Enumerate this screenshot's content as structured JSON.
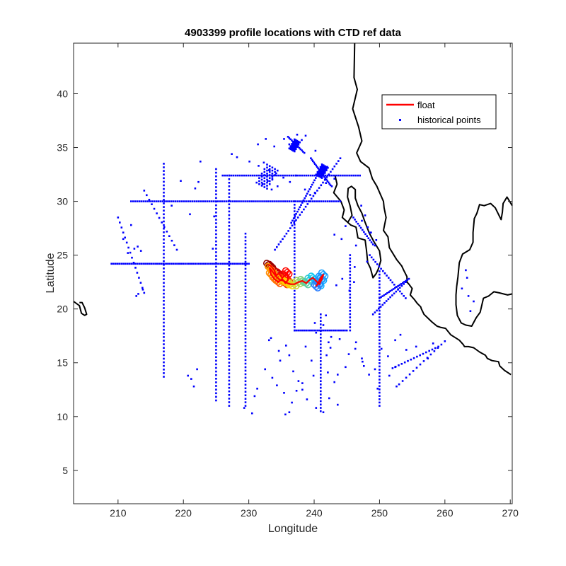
{
  "chart_data": {
    "type": "scatter",
    "title": "4903399 profile locations with CTD ref data",
    "xlabel": "Longitude",
    "ylabel": "Latitude",
    "xlim": [
      203.2,
      270.3
    ],
    "ylim": [
      1.9,
      44.7
    ],
    "xticks": [
      210,
      220,
      230,
      240,
      250,
      260,
      270
    ],
    "yticks": [
      5,
      10,
      15,
      20,
      25,
      30,
      35,
      40
    ],
    "grid": false,
    "legend_position": "top-right",
    "colors": {
      "float": "#ff0000",
      "historical": "#0000ff",
      "coast": "#000000",
      "trajectory_gradient": [
        "#8b0000",
        "#ff0000",
        "#ff8c00",
        "#ffd700",
        "#00c8ff",
        "#2a7fff"
      ]
    },
    "series": [
      {
        "name": "float",
        "style": "line",
        "color": "#ff0000",
        "x": [
          233.0,
          233.4,
          233.9,
          234.2,
          234.6,
          235.1,
          235.5,
          235.9,
          236.0,
          235.6,
          235.1,
          234.5,
          233.9,
          233.4,
          233.2,
          233.6,
          234.2,
          234.8,
          235.4,
          235.9,
          236.4,
          237.0,
          237.6,
          238.2,
          238.8,
          239.3,
          239.8,
          240.3,
          240.8,
          241.2,
          241.4,
          241.0,
          240.6,
          240.3
        ],
        "y": [
          24.1,
          24.0,
          23.6,
          23.1,
          23.3,
          22.9,
          23.1,
          23.4,
          22.7,
          22.4,
          22.8,
          22.5,
          22.8,
          23.2,
          23.8,
          23.5,
          23.0,
          22.7,
          22.6,
          22.4,
          22.3,
          22.3,
          22.5,
          22.6,
          22.4,
          22.7,
          22.9,
          22.6,
          22.3,
          22.8,
          23.2,
          22.9,
          22.4,
          22.1
        ]
      },
      {
        "name": "historical points",
        "style": "dots",
        "color": "#0000ff",
        "groups": [
          {
            "label": "",
            "x": [
              212,
              244
            ],
            "y": [
              30,
              30
            ],
            "n": 100
          },
          {
            "label": "",
            "x": [
              226,
              247
            ],
            "y": [
              32.4,
              32.4
            ],
            "n": 65
          },
          {
            "label": "",
            "x": [
              209,
              230
            ],
            "y": [
              24.2,
              24.2
            ],
            "n": 70
          },
          {
            "label": "",
            "x": [
              217,
              217
            ],
            "y": [
              33.5,
              13.7
            ],
            "n": 60
          },
          {
            "label": "",
            "x": [
              225,
              225
            ],
            "y": [
              33.0,
              11.5
            ],
            "n": 65
          },
          {
            "label": "",
            "x": [
              227,
              227
            ],
            "y": [
              32.4,
              11.0
            ],
            "n": 65
          },
          {
            "label": "",
            "x": [
              229.5,
              229.5
            ],
            "y": [
              27.0,
              11.0
            ],
            "n": 50
          },
          {
            "label": "",
            "x": [
              237,
              237
            ],
            "y": [
              30,
              18
            ],
            "n": 40
          },
          {
            "label": "",
            "x": [
              237,
              245
            ],
            "y": [
              18,
              18
            ],
            "n": 28
          },
          {
            "label": "",
            "x": [
              245.5,
              245.5
            ],
            "y": [
              25.0,
              18.0
            ],
            "n": 24
          },
          {
            "label": "",
            "x": [
              250,
              250
            ],
            "y": [
              23.5,
              11.0
            ],
            "n": 42
          },
          {
            "label": "",
            "x": [
              241,
              241
            ],
            "y": [
              19.5,
              10.5
            ],
            "n": 30
          },
          {
            "label": "",
            "x": [
              234,
              244
            ],
            "y": [
              25.5,
              34.0
            ],
            "n": 35
          },
          {
            "label": "",
            "x": [
              250,
              254.5
            ],
            "y": [
              21,
              22.8
            ],
            "n": 20
          },
          {
            "label": "",
            "x": [
              249,
              254
            ],
            "y": [
              19.5,
              22.5
            ],
            "n": 18
          },
          {
            "label": "",
            "x": [
              248.5,
              254.0
            ],
            "y": [
              25.0,
              21.0
            ],
            "n": 20
          },
          {
            "label": "",
            "x": [
              236.5,
              241.0
            ],
            "y": [
              28.0,
              33.0
            ],
            "n": 25
          },
          {
            "label": "",
            "x": [
              210.0,
              214.0
            ],
            "y": [
              28.5,
              21.5
            ],
            "n": 16
          },
          {
            "label": "",
            "x": [
              214.0,
              219.0
            ],
            "y": [
              31.0,
              25.5
            ],
            "n": 14
          },
          {
            "label": "",
            "x": [
              239.5,
              242.5
            ],
            "y": [
              34.0,
              31.5
            ],
            "n": 20
          },
          {
            "label": "",
            "x": [
              236.0,
              238.5
            ],
            "y": [
              36.0,
              34.5
            ],
            "n": 14
          },
          {
            "label": "",
            "x": [
              246.0,
              249.0
            ],
            "y": [
              28.5,
              26.0
            ],
            "n": 14
          },
          {
            "label": "",
            "x": [
              252.0,
              259.0
            ],
            "y": [
              14.5,
              16.5
            ],
            "n": 16
          },
          {
            "label": "",
            "x": [
              253.0,
              260.0
            ],
            "y": [
              13.0,
              17.0
            ],
            "n": 14
          }
        ],
        "x": [
          213,
          213.5,
          212.5,
          211.5,
          213.8,
          213.1,
          212.8,
          210.8,
          212,
          224.5,
          224.7,
          221.8,
          222.3,
          221,
          218.2,
          219.6,
          222.6,
          227.4,
          228.2,
          230.1,
          231.4,
          232.6,
          233.9,
          235.4,
          236.2,
          237.4,
          238.1,
          238.7,
          240.2,
          241.1,
          231.5,
          232.3,
          233.1,
          233.6,
          232.1,
          232.9,
          233.5,
          234.4,
          234.2,
          235.3,
          233.2,
          242,
          241.4,
          242.4,
          243.1,
          241.8,
          242.7,
          238.6,
          239.4,
          240.1,
          236.3,
          237.2,
          247.3,
          248.2,
          248.7,
          249.5,
          246.4,
          244.2,
          243.1,
          244.8,
          235.4,
          234.3,
          233.6,
          232.5,
          234.8,
          236.2,
          235.7,
          233.4,
          233.1,
          234.6,
          236.8,
          237.6,
          238.2,
          238.9,
          240.3,
          241.4,
          242.3,
          243.6,
          243.1,
          242.1,
          241.9,
          242.5,
          243.9,
          251.3,
          252.4,
          251.5,
          252.6,
          249.7,
          248.4,
          247.6,
          247.3,
          246.3,
          240.1,
          241.8,
          241.4,
          240.3,
          242.6,
          242.2,
          238.7,
          239.6,
          239.9,
          238.2,
          237.3,
          236.6,
          236.2,
          235.6,
          230.9,
          231.3,
          229.3,
          230.5,
          221.6,
          221.2,
          220.7,
          222.1,
          243.6,
          244.8,
          245.3,
          246.4,
          247.4,
          249.3,
          250.3,
          252.4,
          253.2,
          254.1,
          255.6,
          257.4,
          258.2,
          263.2,
          263.4,
          262.6,
          263.6,
          264.4,
          263.9,
          247.2,
          247.8,
          248.5,
          249.3,
          248.1,
          246.2,
          246.1,
          245.4,
          244.3,
          243.4
        ],
        "y": [
          25.8,
          25.4,
          25.6,
          25.2,
          21.8,
          21.4,
          21.2,
          26.5,
          27.8,
          25.6,
          28.6,
          31.2,
          31.8,
          28.8,
          29.6,
          31.9,
          33.7,
          34.4,
          34.1,
          33.7,
          35.3,
          35.8,
          35.1,
          35.8,
          35.3,
          36.2,
          35.7,
          36.1,
          34.7,
          33.1,
          33.3,
          33.6,
          32.9,
          32.1,
          31.6,
          31.9,
          31.1,
          31.4,
          32.6,
          32.2,
          32.9,
          33.2,
          32.8,
          32.4,
          32.1,
          31.7,
          31.4,
          31.1,
          30.6,
          30.8,
          31.8,
          32.4,
          28.2,
          27.6,
          27.1,
          26.4,
          25.9,
          26.5,
          26.9,
          27.7,
          12.2,
          12.9,
          13.6,
          14.4,
          15.2,
          15.7,
          16.6,
          17.3,
          17.1,
          16.1,
          14.2,
          13.3,
          12.5,
          11.6,
          10.8,
          10.4,
          11.7,
          11.1,
          13.2,
          14.1,
          15.7,
          16.4,
          17.2,
          15.6,
          14.6,
          13.8,
          12.8,
          12.6,
          13.9,
          14.7,
          15.4,
          16.3,
          18.7,
          19.4,
          18.5,
          17.8,
          17.4,
          16.9,
          16.5,
          15.2,
          13.8,
          13.1,
          12.4,
          11.3,
          10.4,
          10.2,
          11.9,
          12.6,
          10.8,
          10.3,
          12.8,
          13.5,
          13.8,
          14.4,
          13.9,
          14.6,
          15.8,
          16.9,
          15.1,
          14.4,
          16.3,
          17.1,
          17.6,
          16.2,
          16.5,
          15.4,
          16.8,
          23.6,
          22.9,
          21.9,
          21.2,
          20.7,
          19.8,
          29.6,
          28.7,
          27.1,
          25.9,
          24.4,
          23.9,
          22.5,
          21.7,
          22.8,
          22.2
        ]
      }
    ]
  },
  "legend": {
    "float_label": "float",
    "historical_label": "historical points"
  },
  "coastlines": [
    {
      "name": "north-america-coast",
      "lon": [
        246.2,
        246.1,
        246.6,
        245.9,
        246.8,
        247.3,
        246.5,
        247.1,
        248.4,
        248.9,
        249.6,
        250.6,
        250.7,
        251.0,
        250.6,
        251.3,
        251.5,
        252.6,
        253.4,
        253.7,
        254.2,
        254.2,
        254.5,
        255.0,
        254.7,
        255.3,
        255.8,
        256.3,
        256.4,
        256.8,
        258.0,
        258.8,
        259.3,
        260.1,
        260.9,
        262.2,
        262.8,
        263.0,
        263.6,
        264.4,
        265.3,
        266.2,
        266.5,
        267.2,
        268.2,
        268.4,
        269.1,
        270.1
      ],
      "lat": [
        44.7,
        41.5,
        40.4,
        38.6,
        36.9,
        35.6,
        34.5,
        33.7,
        33.1,
        32.1,
        31.4,
        30.0,
        29.4,
        28.5,
        27.3,
        26.7,
        25.7,
        24.6,
        24.0,
        23.6,
        23.0,
        22.5,
        22.3,
        21.9,
        21.3,
        20.9,
        20.5,
        20.2,
        20.0,
        19.5,
        18.8,
        18.4,
        18.3,
        18.2,
        17.6,
        17.1,
        16.7,
        16.5,
        16.5,
        16.4,
        16.0,
        15.7,
        15.4,
        15.2,
        15.1,
        14.7,
        14.3,
        13.9
      ]
    },
    {
      "name": "baja-california",
      "lon": [
        243.2,
        243.5,
        243.0,
        244.1,
        244.6,
        244.3,
        245.6,
        246.4,
        246.7,
        247.8,
        248.0,
        248.2,
        248.6,
        249.0,
        249.5,
        249.8,
        250.2,
        250.0,
        249.1,
        248.4,
        247.7,
        247.3,
        246.7,
        246.3,
        246.3,
        245.7,
        245.2,
        245.1,
        245.5,
        245.8,
        245.1
      ],
      "lat": [
        32.4,
        31.6,
        30.8,
        30.0,
        29.2,
        28.5,
        27.8,
        27.6,
        26.6,
        26.4,
        25.5,
        24.3,
        23.8,
        22.9,
        23.3,
        23.7,
        24.5,
        25.4,
        26.3,
        27.1,
        28.2,
        28.9,
        29.6,
        30.3,
        31.1,
        31.4,
        31.2,
        30.4,
        29.6,
        28.7,
        28.0
      ]
    },
    {
      "name": "gulf-coast",
      "lon": [
        270.3,
        269.5,
        268.9,
        268.8,
        268.6,
        267.7,
        267.0,
        266.0,
        265.3,
        264.9,
        264.5,
        264.3,
        264.3,
        263.8,
        262.7,
        262.2,
        262.0,
        261.8,
        261.7,
        261.7,
        261.9,
        262.5,
        263.2,
        264.1,
        264.8,
        265.4,
        265.9,
        266.7,
        267.5,
        268.3,
        269.6,
        270.3
      ],
      "lat": [
        29.6,
        30.4,
        29.8,
        29.0,
        28.3,
        29.4,
        29.8,
        29.6,
        29.7,
        28.9,
        28.4,
        27.1,
        26.2,
        25.5,
        25.1,
        24.3,
        23.0,
        22.1,
        21.3,
        20.4,
        19.4,
        18.7,
        18.5,
        18.4,
        19.2,
        19.7,
        21.0,
        21.2,
        21.6,
        21.5,
        21.3,
        21.4
      ]
    },
    {
      "name": "hawaii",
      "lon": [
        203.2,
        204.1,
        204.4,
        204.9,
        205.2,
        204.9,
        204.5,
        204.1
      ],
      "lat": [
        20.7,
        20.3,
        19.6,
        19.4,
        19.5,
        20.1,
        20.6,
        20.6
      ]
    }
  ]
}
